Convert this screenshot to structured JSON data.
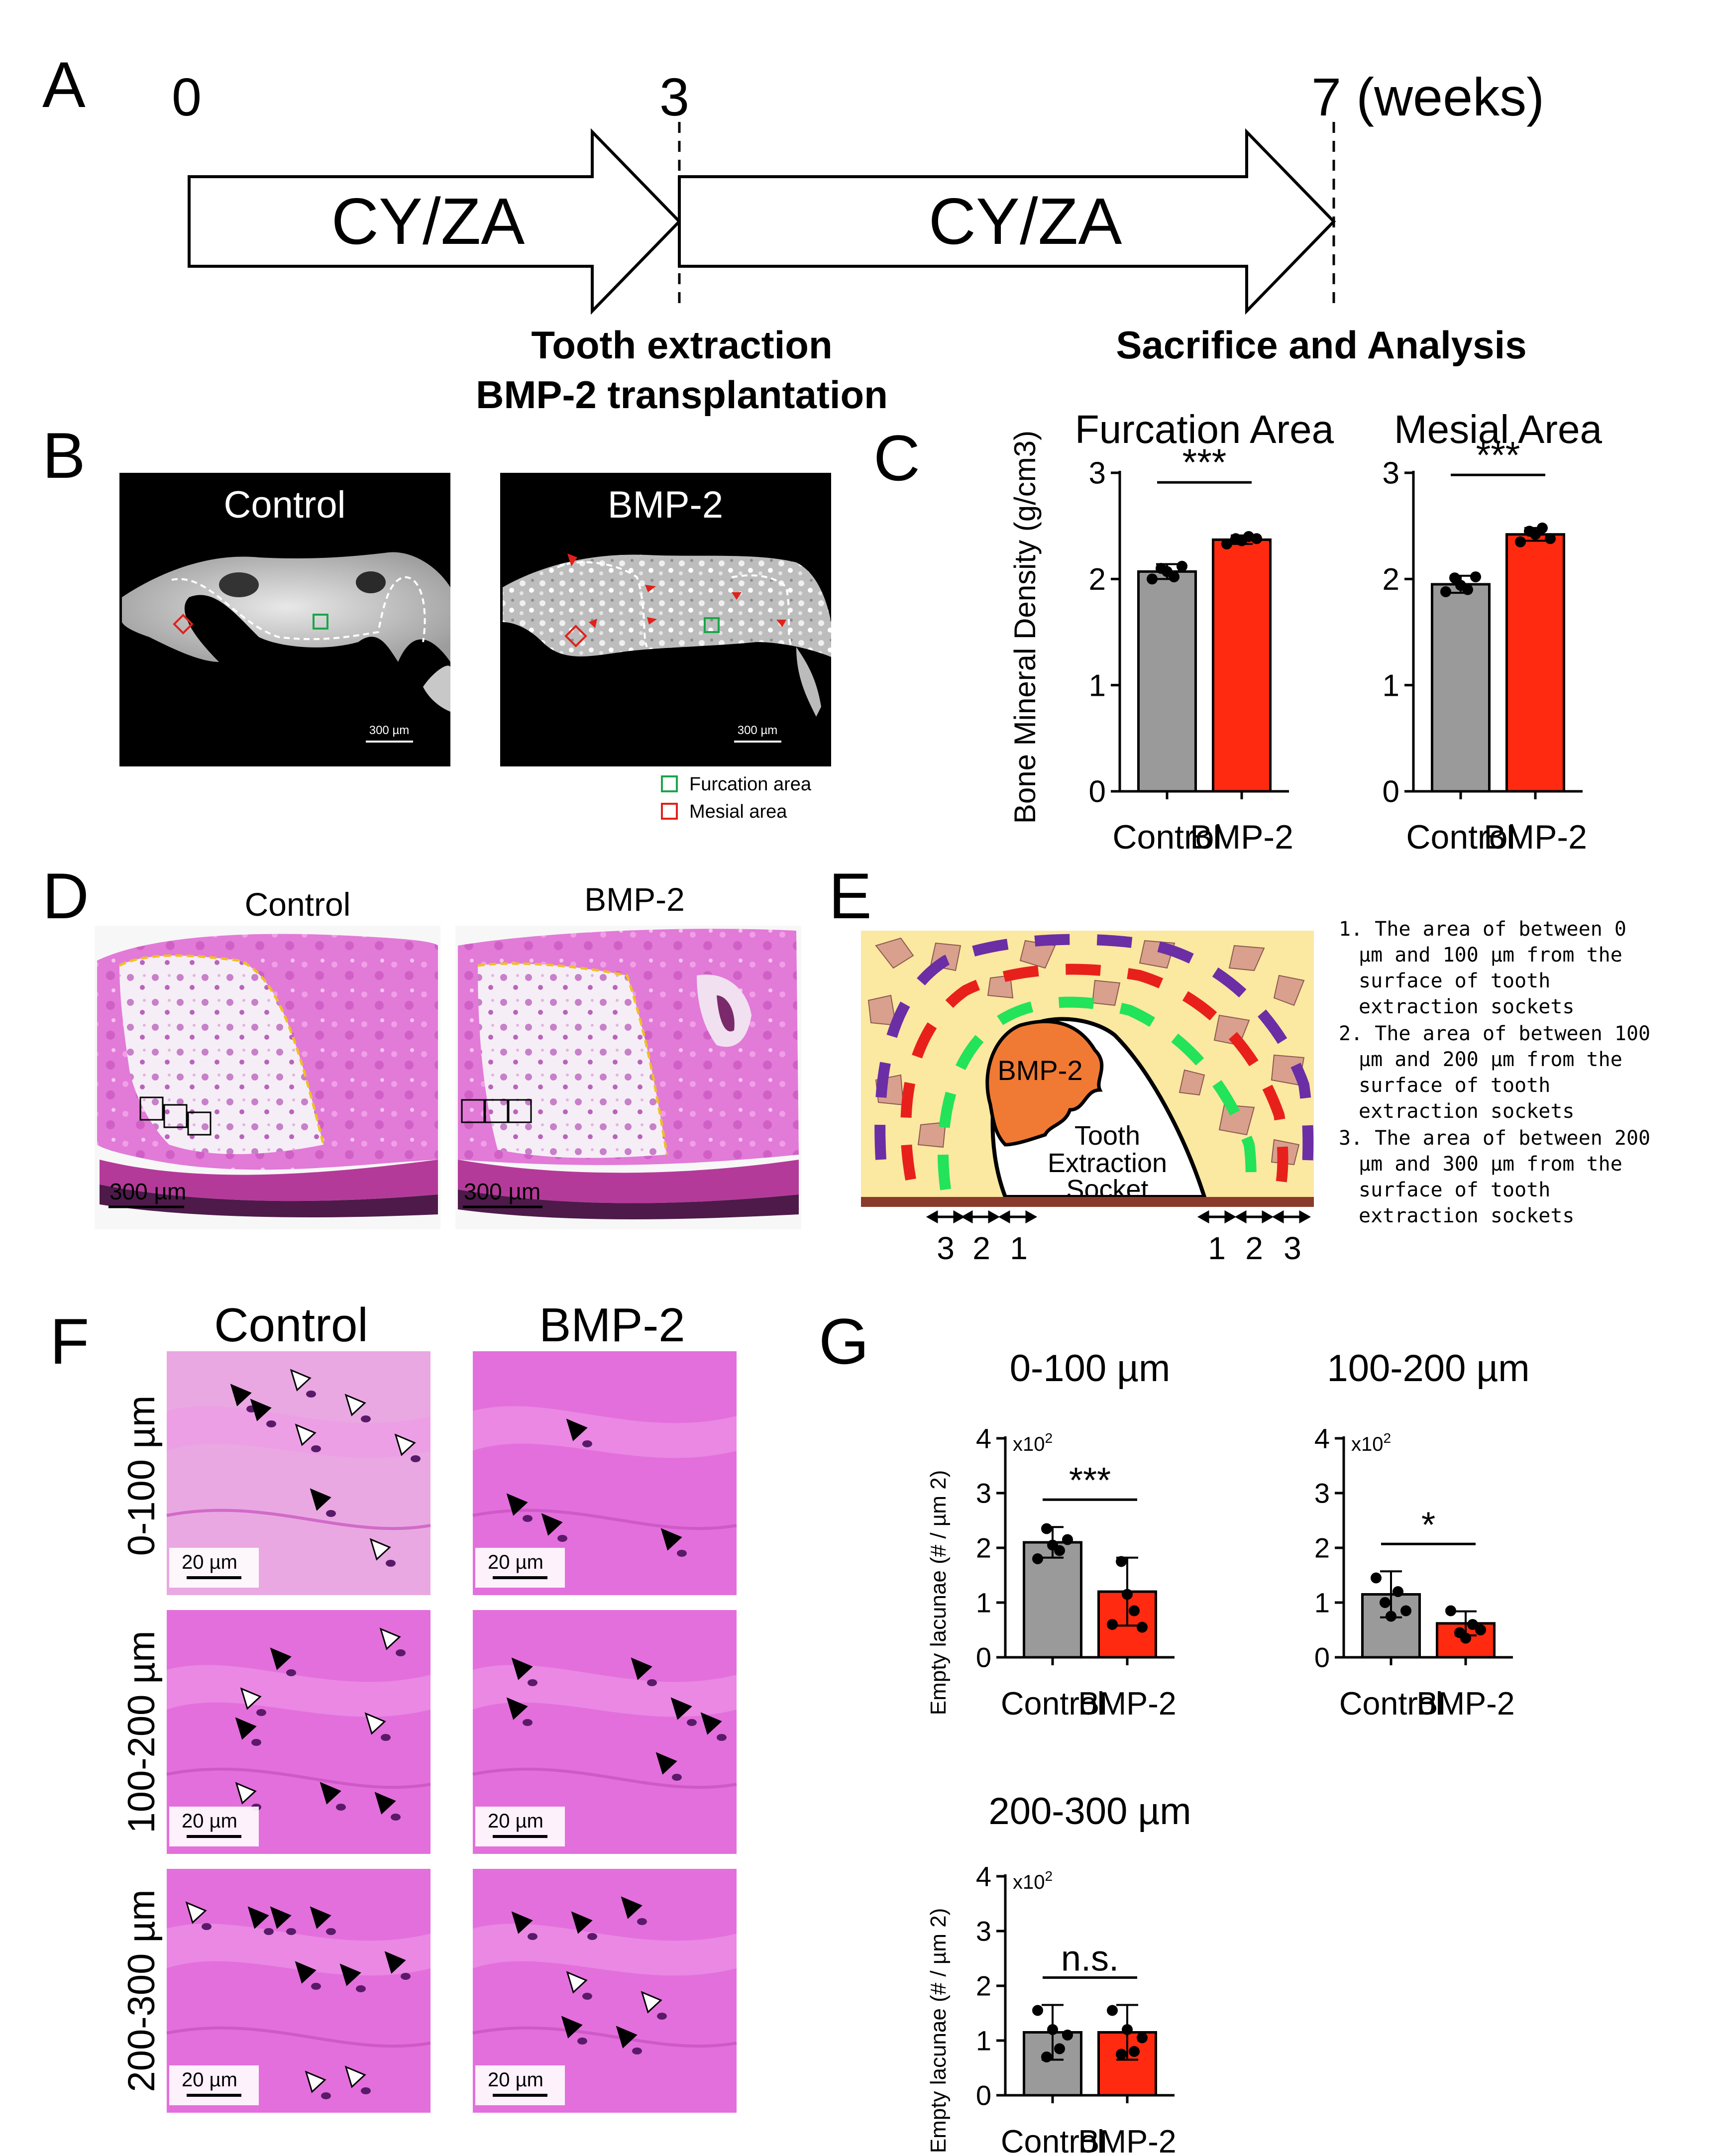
{
  "panels": {
    "A": {
      "letter": "A",
      "tick_labels": [
        "0",
        "3",
        "7 (weeks)"
      ],
      "arrow_labels": [
        "CY/ZA",
        "CY/ZA"
      ],
      "event_labels": [
        "Tooth extraction",
        "BMP-2 transplantation",
        "Sacrifice and Analysis"
      ]
    },
    "B": {
      "letter": "B",
      "image_titles": [
        "Control",
        "BMP-2"
      ],
      "scale_bars": [
        "300 µm",
        "300 µm"
      ],
      "legend": [
        {
          "label": "Furcation area",
          "color": "#1aa64a"
        },
        {
          "label": "Mesial area",
          "color": "#e0211b"
        }
      ]
    },
    "D": {
      "letter": "D",
      "image_titles": [
        "Control",
        "BMP-2"
      ],
      "scale_bars": [
        "300 µm",
        "300 µm"
      ]
    },
    "E": {
      "letter": "E",
      "diagram_labels": {
        "bmp": "BMP-2",
        "socket": [
          "Tooth",
          "Extraction",
          "Socket"
        ]
      },
      "zone_numbers_left": [
        "3",
        "2",
        "1"
      ],
      "zone_numbers_right": [
        "1",
        "2",
        "3"
      ],
      "notes": [
        [
          "1. The area of between 0",
          "µm and 100 µm from the",
          "surface of tooth",
          "extraction sockets"
        ],
        [
          "2. The area of between 100",
          "µm and 200 µm from the",
          "surface of tooth",
          "extraction sockets"
        ],
        [
          "3. The area of between 200",
          "µm and 300 µm from the",
          "surface of tooth",
          "extraction sockets"
        ]
      ],
      "zone_colors": [
        "#22e35a",
        "#e8201c",
        "#6b2ea5"
      ]
    },
    "F": {
      "letter": "F",
      "column_titles": [
        "Control",
        "BMP-2"
      ],
      "row_labels": [
        "0-100 µm",
        "100-200 µm",
        "200-300 µm"
      ],
      "scale_bar": "20 µm"
    },
    "C": {
      "letter": "C"
    },
    "G": {
      "letter": "G"
    }
  },
  "colors": {
    "control": "#9a9a9a",
    "bmp2": "#ff2a10",
    "he_pink": "#e070d8"
  },
  "chart_data": [
    {
      "id": "C-furcation",
      "type": "bar",
      "title": "Furcation Area",
      "ylabel": "Bone Mineral Density (g/cm3)",
      "categories": [
        "Control",
        "BMP-2"
      ],
      "values": [
        2.07,
        2.37
      ],
      "errors": [
        0.07,
        0.04
      ],
      "points": [
        [
          2.0,
          2.1,
          2.07,
          2.02,
          2.12
        ],
        [
          2.33,
          2.38,
          2.36,
          2.4,
          2.38
        ]
      ],
      "ylim": [
        0,
        3
      ],
      "yticks": [
        "0",
        "1",
        "2",
        "3"
      ],
      "significance": "***"
    },
    {
      "id": "C-mesial",
      "type": "bar",
      "title": "Mesial Area",
      "ylabel": "",
      "categories": [
        "Control",
        "BMP-2"
      ],
      "values": [
        1.95,
        2.42
      ],
      "errors": [
        0.08,
        0.06
      ],
      "points": [
        [
          1.88,
          2.01,
          1.94,
          1.9,
          2.02
        ],
        [
          2.35,
          2.45,
          2.42,
          2.48,
          2.38
        ]
      ],
      "ylim": [
        0,
        3
      ],
      "yticks": [
        "0",
        "1",
        "2",
        "3"
      ],
      "significance": "***"
    },
    {
      "id": "G-0-100",
      "type": "bar",
      "title": "0-100 µm",
      "ylabel": "Empty lacunae (# / µm 2)",
      "multiplier": "x10",
      "multiplier_exp": "2",
      "categories": [
        "Control",
        "BMP-2"
      ],
      "values": [
        2.1,
        1.2
      ],
      "errors": [
        0.28,
        0.62
      ],
      "points": [
        [
          1.8,
          2.35,
          2.05,
          1.95,
          2.15
        ],
        [
          0.6,
          1.75,
          1.15,
          0.85,
          0.55
        ]
      ],
      "ylim": [
        0,
        4
      ],
      "yticks": [
        "0",
        "1",
        "2",
        "3",
        "4"
      ],
      "significance": "***"
    },
    {
      "id": "G-100-200",
      "type": "bar",
      "title": "100-200 µm",
      "ylabel": "",
      "multiplier": "x10",
      "multiplier_exp": "2",
      "categories": [
        "Control",
        "BMP-2"
      ],
      "values": [
        1.15,
        0.62
      ],
      "errors": [
        0.42,
        0.22
      ],
      "points": [
        [
          1.45,
          1.0,
          0.75,
          1.2,
          0.85
        ],
        [
          0.85,
          0.45,
          0.35,
          0.6,
          0.5
        ]
      ],
      "ylim": [
        0,
        4
      ],
      "yticks": [
        "0",
        "1",
        "2",
        "3",
        "4"
      ],
      "significance": "*"
    },
    {
      "id": "G-200-300",
      "type": "bar",
      "title": "200-300 µm",
      "ylabel": "Empty lacunae (# / µm 2)",
      "multiplier": "x10",
      "multiplier_exp": "2",
      "categories": [
        "Control",
        "BMP-2"
      ],
      "values": [
        1.15,
        1.15
      ],
      "errors": [
        0.5,
        0.5
      ],
      "points": [
        [
          1.55,
          0.7,
          1.2,
          0.85,
          1.1
        ],
        [
          1.55,
          0.75,
          1.2,
          0.8,
          1.05
        ]
      ],
      "ylim": [
        0,
        4
      ],
      "yticks": [
        "0",
        "1",
        "2",
        "3",
        "4"
      ],
      "significance": "n.s."
    }
  ]
}
